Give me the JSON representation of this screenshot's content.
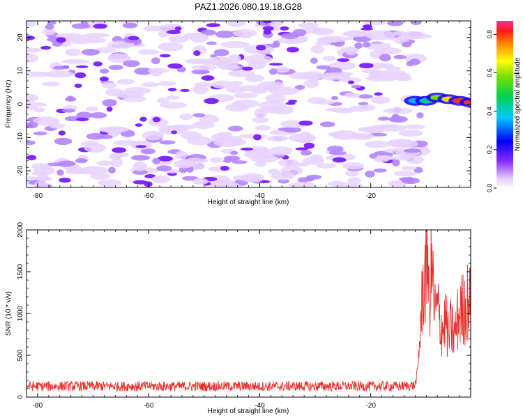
{
  "title": "PAZ1.2026.080.19.18.G28",
  "chart_data": [
    {
      "type": "heatmap",
      "title": "PAZ1.2026.080.19.18.G28",
      "xlabel": "Height of straight line (km)",
      "ylabel": "Frequency (Hz)",
      "xlim": [
        -82,
        -2
      ],
      "ylim": [
        -25,
        25
      ],
      "xticks": [
        "-80",
        "-60",
        "-40",
        "-20"
      ],
      "xtick_values": [
        -80,
        -60,
        -40,
        -20
      ],
      "yticks": [
        "-20",
        "-10",
        "0",
        "10",
        "20"
      ],
      "ytick_values": [
        -20,
        -10,
        0,
        10,
        20
      ],
      "description_of_data": "noise-like spectral amplitude across all frequencies below ~-12 km; strong narrow signal near 0 to 2 Hz above -12 km",
      "signal_ridge": {
        "x": [
          -12,
          -10,
          -8,
          -6,
          -4,
          -2
        ],
        "frequency_hz": [
          1.0,
          1.0,
          2.0,
          1.5,
          1.0,
          0.5
        ],
        "amplitude": [
          0.2,
          0.35,
          0.5,
          0.6,
          0.75,
          0.85
        ]
      },
      "noise_level": 0.15,
      "colorbar": {
        "label": "Normalized spectral amplitude",
        "range": [
          0,
          0.87
        ],
        "ticks": [
          "0.0",
          "0.2",
          "0.4",
          "0.6",
          "0.8"
        ],
        "tick_values": [
          0.0,
          0.2,
          0.4,
          0.6,
          0.8
        ]
      }
    },
    {
      "type": "line",
      "xlabel": "Height of straight line (km)",
      "ylabel": "SNR (10 * v/v)",
      "xlim": [
        -82,
        -2
      ],
      "ylim": [
        0,
        2000
      ],
      "xticks": [
        "-80",
        "-60",
        "-40",
        "-20"
      ],
      "xtick_values": [
        -80,
        -60,
        -40,
        -20
      ],
      "yticks": [
        "0",
        "500",
        "1000",
        "1500",
        "2000"
      ],
      "ytick_values": [
        0,
        500,
        1000,
        1500,
        2000
      ],
      "series": [
        {
          "name": "SNR",
          "color": "#e8302a",
          "x": [
            -82,
            -75,
            -60,
            -45,
            -30,
            -15,
            -12,
            -11.5,
            -11,
            -10.5,
            -10,
            -9.5,
            -9,
            -8.5,
            -8,
            -7.5,
            -7,
            -6.5,
            -6,
            -5.5,
            -5,
            -4.5,
            -4,
            -3.5,
            -3,
            -2.5,
            -2
          ],
          "values": [
            130,
            130,
            130,
            130,
            130,
            130,
            140,
            350,
            900,
            1350,
            1500,
            1100,
            1600,
            1000,
            1050,
            900,
            800,
            950,
            700,
            850,
            700,
            900,
            1000,
            1050,
            1100,
            1150,
            1100
          ],
          "noise_amplitude": 60
        }
      ]
    }
  ],
  "colors": {
    "signal_line": "#e8302a",
    "noise_shade_light": "#e7d2ff",
    "noise_shade_mid": "#b384ff",
    "noise_shade_dark": "#7a1cff"
  }
}
